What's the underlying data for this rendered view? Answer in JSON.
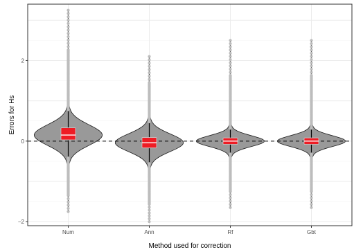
{
  "chart_data": {
    "type": "violin",
    "title": "",
    "xlabel": "Method used for correction",
    "ylabel": "Errors for Hs",
    "categories": [
      "Num",
      "Ann",
      "Rf",
      "Gbt"
    ],
    "ylim": [
      -2.1,
      3.4
    ],
    "yticks": [
      -2,
      0,
      2
    ],
    "ytick_labels": [
      "−2",
      "0",
      "2"
    ],
    "grid": true,
    "reference_line": {
      "y": 0,
      "style": "dashed"
    },
    "boxes": [
      {
        "category": "Num",
        "q1": 0.03,
        "median": 0.15,
        "q3": 0.33,
        "whisker_low": -1.75,
        "whisker_high": 3.25
      },
      {
        "category": "Ann",
        "q1": -0.17,
        "median": -0.04,
        "q3": 0.09,
        "whisker_low": -2.0,
        "whisker_high": 2.1
      },
      {
        "category": "Rf",
        "q1": -0.08,
        "median": 0.0,
        "q3": 0.08,
        "whisker_low": -1.65,
        "whisker_high": 2.5
      },
      {
        "category": "Gbt",
        "q1": -0.08,
        "median": 0.0,
        "q3": 0.08,
        "whisker_low": -1.65,
        "whisker_high": 2.5
      }
    ],
    "colors": {
      "violin_fill": "#999999",
      "box_fill": "#ee1c24",
      "points": "#bdbdbd",
      "median": "#ffffff"
    }
  }
}
